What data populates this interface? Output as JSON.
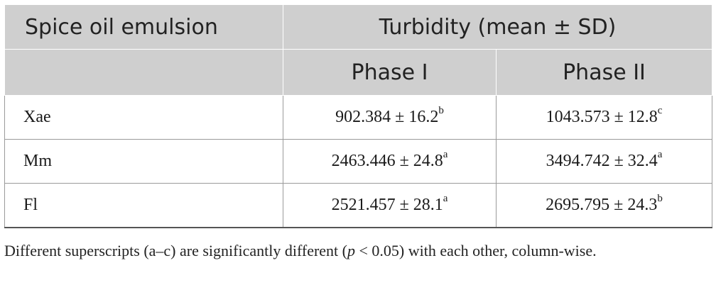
{
  "table": {
    "header": {
      "col1": "Spice oil emulsion",
      "group": "Turbidity (mean ± SD)",
      "phase1": "Phase I",
      "phase2": "Phase II"
    },
    "rows": [
      {
        "name": "Xae",
        "p1": "902.384 ± 16.2",
        "p1_sup": "b",
        "p2": "1043.573 ± 12.8",
        "p2_sup": "c"
      },
      {
        "name": "Mm",
        "p1": "2463.446 ± 24.8",
        "p1_sup": "a",
        "p2": "3494.742 ± 32.4",
        "p2_sup": "a"
      },
      {
        "name": "Fl",
        "p1": "2521.457 ± 28.1",
        "p1_sup": "a",
        "p2": "2695.795 ± 24.3",
        "p2_sup": "b"
      }
    ]
  },
  "footnote": {
    "before": "Different superscripts (a–c) are significantly different (",
    "pvar": "p",
    "after": " < 0.05) with each other, column-wise."
  }
}
